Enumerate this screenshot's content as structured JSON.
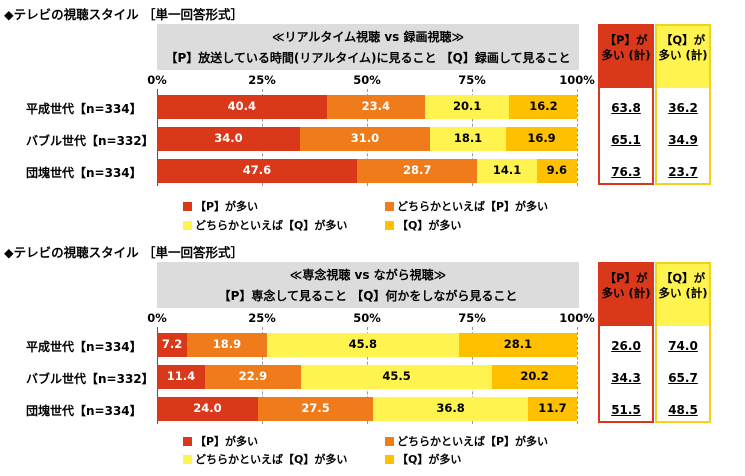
{
  "colors": {
    "red": "#d9391a",
    "orange": "#f07b1b",
    "lightyellow": "#fff44f",
    "gold": "#ffc000",
    "gray": "#dcdcdc"
  },
  "ticks": [
    "0%",
    "25%",
    "50%",
    "75%",
    "100%"
  ],
  "chart_data": [
    {
      "type": "bar",
      "title": "◆テレビの視聴スタイル ［単一回答形式］",
      "subtitle1": "≪リアルタイム視聴 vs 録画視聴≫",
      "subtitle2": "【P】放送している時間(リアルタイム)に見ること 【Q】録画して見ること",
      "categories": [
        "平成世代【n=334】",
        "バブル世代【n=332】",
        "団塊世代【n=334】"
      ],
      "series": [
        {
          "name": "【P】が多い",
          "values": [
            40.4,
            34.0,
            47.6
          ]
        },
        {
          "name": "どちらかといえば【P】が多い",
          "values": [
            23.4,
            31.0,
            28.7
          ]
        },
        {
          "name": "どちらかといえば【Q】が多い",
          "values": [
            20.1,
            18.1,
            14.1
          ]
        },
        {
          "name": "【Q】が多い",
          "values": [
            16.2,
            16.9,
            9.6
          ]
        }
      ],
      "labels": [
        [
          "40.4",
          "23.4",
          "20.1",
          "16.2"
        ],
        [
          "34.0",
          "31.0",
          "18.1",
          "16.9"
        ],
        [
          "47.6",
          "28.7",
          "14.1",
          "9.6"
        ]
      ],
      "summary_p": {
        "header": "【P】が 多い (計)",
        "values": [
          "63.8",
          "65.1",
          "76.3"
        ]
      },
      "summary_q": {
        "header": "【Q】が 多い (計)",
        "values": [
          "36.2",
          "34.9",
          "23.7"
        ]
      },
      "xlim": [
        0,
        100
      ]
    },
    {
      "type": "bar",
      "title": "◆テレビの視聴スタイル ［単一回答形式］",
      "subtitle1": "≪専念視聴 vs ながら視聴≫",
      "subtitle2": "【P】専念して見ること 【Q】何かをしながら見ること",
      "categories": [
        "平成世代【n=334】",
        "バブル世代【n=332】",
        "団塊世代【n=334】"
      ],
      "series": [
        {
          "name": "【P】が多い",
          "values": [
            7.2,
            11.4,
            24.0
          ]
        },
        {
          "name": "どちらかといえば【P】が多い",
          "values": [
            18.9,
            22.9,
            27.5
          ]
        },
        {
          "name": "どちらかといえば【Q】が多い",
          "values": [
            45.8,
            45.5,
            36.8
          ]
        },
        {
          "name": "【Q】が多い",
          "values": [
            28.1,
            20.2,
            11.7
          ]
        }
      ],
      "labels": [
        [
          "7.2",
          "18.9",
          "45.8",
          "28.1"
        ],
        [
          "11.4",
          "22.9",
          "45.5",
          "20.2"
        ],
        [
          "24.0",
          "27.5",
          "36.8",
          "11.7"
        ]
      ],
      "summary_p": {
        "header": "【P】が 多い (計)",
        "values": [
          "26.0",
          "34.3",
          "51.5"
        ]
      },
      "summary_q": {
        "header": "【Q】が 多い (計)",
        "values": [
          "74.0",
          "65.7",
          "48.5"
        ]
      },
      "xlim": [
        0,
        100
      ]
    }
  ]
}
